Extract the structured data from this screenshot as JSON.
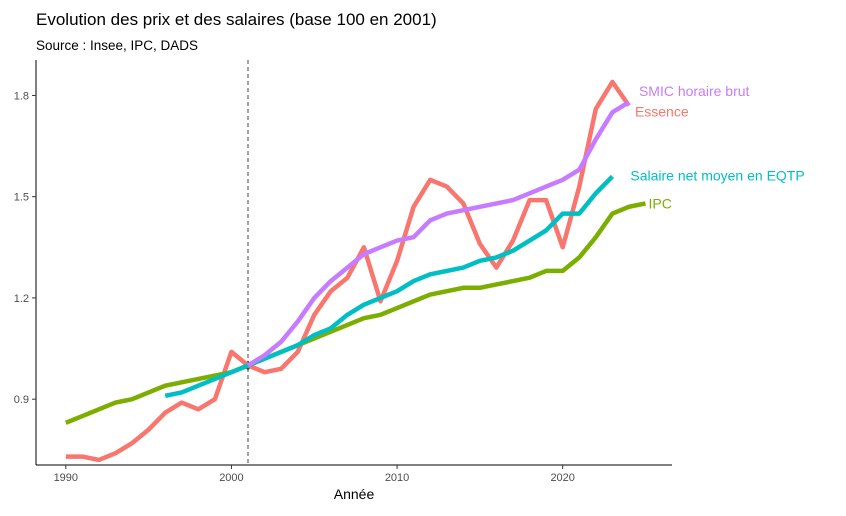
{
  "title": "Evolution des prix et des salaires (base 100 en 2001)",
  "subtitle": "Source : Insee, IPC, DADS",
  "chart_data": {
    "type": "line",
    "title": "Evolution des prix et des salaires (base 100 en 2001)",
    "subtitle": "Source : Insee, IPC, DADS",
    "xlabel": "Année",
    "ylabel": "",
    "xlim": [
      1988.2,
      2026.6
    ],
    "ylim": [
      0.705,
      1.905
    ],
    "xticks": [
      1990,
      2000,
      2010,
      2020
    ],
    "yticks": [
      0.9,
      1.2,
      1.5,
      1.8
    ],
    "ytick_labels": [
      "0.9",
      "1.2",
      "1.5",
      "1.8"
    ],
    "reference_line": {
      "x": 2001,
      "style": "dashed"
    },
    "reference_point": {
      "x": 2001,
      "y": 1.0
    },
    "grid": false,
    "legend": "direct labels at line ends",
    "series": [
      {
        "name": "Essence",
        "color": "#F8766D",
        "x": [
          1990,
          1991,
          1992,
          1993,
          1994,
          1995,
          1996,
          1997,
          1998,
          1999,
          2000,
          2001,
          2002,
          2003,
          2004,
          2005,
          2006,
          2007,
          2008,
          2009,
          2010,
          2011,
          2012,
          2013,
          2014,
          2015,
          2016,
          2017,
          2018,
          2019,
          2020,
          2021,
          2022,
          2023,
          2024
        ],
        "values": [
          0.73,
          0.73,
          0.72,
          0.74,
          0.77,
          0.81,
          0.86,
          0.89,
          0.87,
          0.9,
          1.04,
          1.0,
          0.98,
          0.99,
          1.04,
          1.15,
          1.22,
          1.26,
          1.35,
          1.19,
          1.31,
          1.47,
          1.55,
          1.53,
          1.48,
          1.36,
          1.29,
          1.37,
          1.49,
          1.49,
          1.35,
          1.53,
          1.76,
          1.84,
          1.77
        ]
      },
      {
        "name": "IPC",
        "color": "#7CAE00",
        "x": [
          1990,
          1991,
          1992,
          1993,
          1994,
          1995,
          1996,
          1997,
          1998,
          1999,
          2000,
          2001,
          2002,
          2003,
          2004,
          2005,
          2006,
          2007,
          2008,
          2009,
          2010,
          2011,
          2012,
          2013,
          2014,
          2015,
          2016,
          2017,
          2018,
          2019,
          2020,
          2021,
          2022,
          2023,
          2024,
          2025
        ],
        "values": [
          0.83,
          0.85,
          0.87,
          0.89,
          0.9,
          0.92,
          0.94,
          0.95,
          0.96,
          0.97,
          0.98,
          1.0,
          1.02,
          1.04,
          1.06,
          1.08,
          1.1,
          1.12,
          1.14,
          1.15,
          1.17,
          1.19,
          1.21,
          1.22,
          1.23,
          1.23,
          1.24,
          1.25,
          1.26,
          1.28,
          1.28,
          1.32,
          1.38,
          1.45,
          1.47,
          1.48
        ]
      },
      {
        "name": "Salaire net moyen en EQTP",
        "color": "#00BFC4",
        "x": [
          1996,
          1997,
          1998,
          1999,
          2000,
          2001,
          2002,
          2003,
          2004,
          2005,
          2006,
          2007,
          2008,
          2009,
          2010,
          2011,
          2012,
          2013,
          2014,
          2015,
          2016,
          2017,
          2018,
          2019,
          2020,
          2021,
          2022,
          2023
        ],
        "values": [
          0.91,
          0.92,
          0.94,
          0.96,
          0.98,
          1.0,
          1.02,
          1.04,
          1.06,
          1.09,
          1.11,
          1.15,
          1.18,
          1.2,
          1.22,
          1.25,
          1.27,
          1.28,
          1.29,
          1.31,
          1.32,
          1.34,
          1.37,
          1.4,
          1.45,
          1.45,
          1.51,
          1.56
        ]
      },
      {
        "name": "SMIC horaire brut",
        "color": "#C77CFF",
        "x": [
          2001,
          2002,
          2003,
          2004,
          2005,
          2006,
          2007,
          2008,
          2009,
          2010,
          2011,
          2012,
          2013,
          2014,
          2015,
          2016,
          2017,
          2018,
          2019,
          2020,
          2021,
          2022,
          2023,
          2024
        ],
        "values": [
          1.0,
          1.03,
          1.07,
          1.13,
          1.2,
          1.25,
          1.29,
          1.33,
          1.35,
          1.37,
          1.38,
          1.43,
          1.45,
          1.46,
          1.47,
          1.48,
          1.49,
          1.51,
          1.53,
          1.55,
          1.58,
          1.67,
          1.75,
          1.78
        ]
      }
    ]
  }
}
